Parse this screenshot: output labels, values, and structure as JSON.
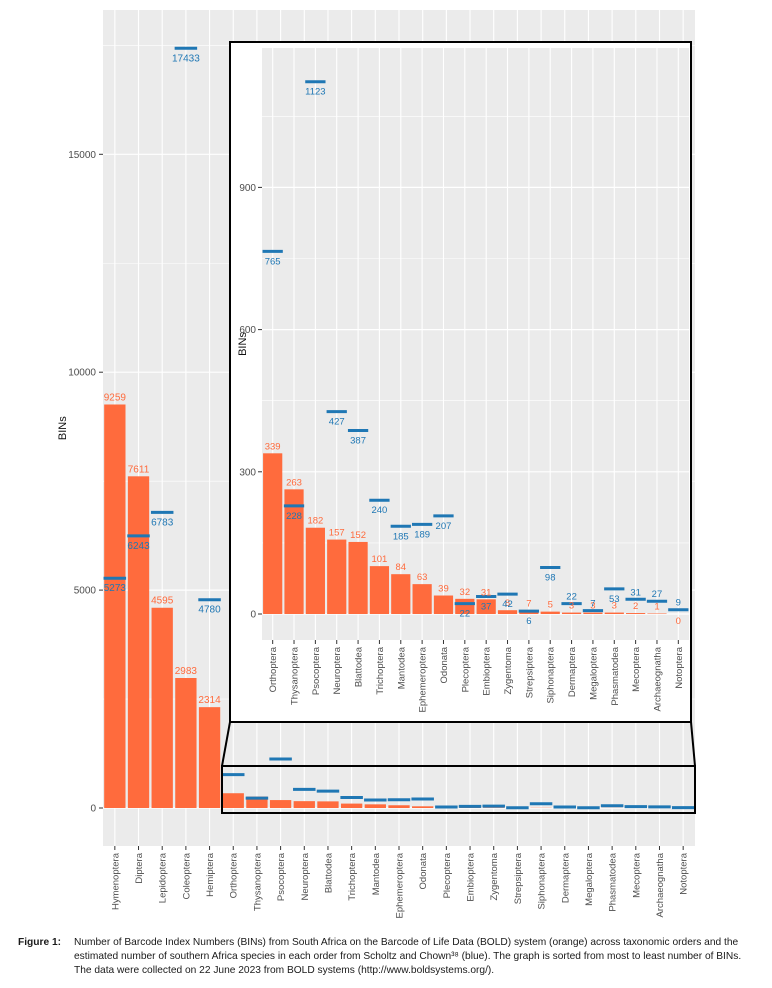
{
  "colors": {
    "bins": "#FF6B3D",
    "species": "#1F77B4",
    "panel_bg": "#EBEBEB",
    "grid": "#FFFFFF",
    "axis_text": "#4D4D4D"
  },
  "caption": {
    "label": "Figure 1:",
    "text": "Number of Barcode Index Numbers (BINs) from South Africa on the Barcode of Life Data (BOLD) system (orange) across taxonomic orders and the estimated number of southern Africa species in each order from Scholtz and Chown³⁸ (blue). The graph is sorted from most to least number of BINs. The data were collected on 22 June 2023 from BOLD systems (http://www.boldsystems.org/)."
  },
  "chart_data": [
    {
      "type": "bar",
      "ylabel": "BINs",
      "xlabel": "",
      "ylim": [
        0,
        18000
      ],
      "yticks": [
        0,
        5000,
        10000,
        15000
      ],
      "grid": true,
      "legend": "none",
      "categories": [
        "Hymenoptera",
        "Diptera",
        "Lepidoptera",
        "Coleoptera",
        "Hemiptera",
        "Orthoptera",
        "Thysanoptera",
        "Psocoptera",
        "Neuroptera",
        "Blattodea",
        "Trichoptera",
        "Mantodea",
        "Ephemeroptera",
        "Odonata",
        "Plecoptera",
        "Embioptera",
        "Zygentoma",
        "Strepsiptera",
        "Siphonaptera",
        "Dermaptera",
        "Megaloptera",
        "Phasmatodea",
        "Mecoptera",
        "Archaeognatha",
        "Notoptera"
      ],
      "series": [
        {
          "kind": "bar",
          "color": "#FF6B3D",
          "values": [
            9259,
            7611,
            4595,
            2983,
            2314,
            339,
            263,
            182,
            157,
            152,
            101,
            84,
            63,
            39,
            32,
            31,
            8,
            7,
            5,
            3,
            3,
            3,
            2,
            1,
            0
          ],
          "labels_shown": [
            9259,
            7611,
            4595,
            2983,
            2314
          ]
        },
        {
          "kind": "segment",
          "color": "#1F77B4",
          "values": [
            5273,
            6243,
            6783,
            17433,
            4780,
            765,
            228,
            1123,
            427,
            387,
            240,
            185,
            189,
            207,
            22,
            37,
            42,
            6,
            98,
            22,
            7,
            53,
            31,
            27,
            9
          ],
          "labels_shown": [
            5273,
            6243,
            6783,
            17433,
            4780
          ]
        }
      ]
    },
    {
      "type": "bar",
      "ylabel": "BINs",
      "xlabel": "",
      "ylim": [
        -35,
        1175
      ],
      "yticks": [
        0,
        300,
        600,
        900
      ],
      "grid": true,
      "legend": "none",
      "categories": [
        "Orthoptera",
        "Thysanoptera",
        "Psocoptera",
        "Neuroptera",
        "Blattodea",
        "Trichoptera",
        "Mantodea",
        "Ephemeroptera",
        "Odonata",
        "Plecoptera",
        "Embioptera",
        "Zygentoma",
        "Strepsiptera",
        "Siphonaptera",
        "Dermaptera",
        "Megaloptera",
        "Phasmatodea",
        "Mecoptera",
        "Archaeognatha",
        "Notoptera"
      ],
      "series": [
        {
          "kind": "bar",
          "color": "#FF6B3D",
          "values": [
            339,
            263,
            182,
            157,
            152,
            101,
            84,
            63,
            39,
            32,
            31,
            8,
            7,
            5,
            3,
            3,
            3,
            2,
            1,
            0
          ],
          "labels_shown": [
            339,
            263,
            182,
            157,
            152,
            101,
            84,
            63,
            39,
            32,
            31,
            8,
            7,
            5,
            3,
            3,
            3,
            2,
            1,
            0
          ]
        },
        {
          "kind": "segment",
          "color": "#1F77B4",
          "values": [
            765,
            228,
            1123,
            427,
            387,
            240,
            185,
            189,
            207,
            22,
            37,
            42,
            6,
            98,
            22,
            7,
            53,
            31,
            27,
            9
          ],
          "labels_shown": [
            765,
            228,
            1123,
            427,
            387,
            240,
            185,
            189,
            207,
            22,
            37,
            42,
            6,
            98,
            22,
            7,
            53,
            31,
            27,
            9
          ]
        }
      ]
    }
  ]
}
